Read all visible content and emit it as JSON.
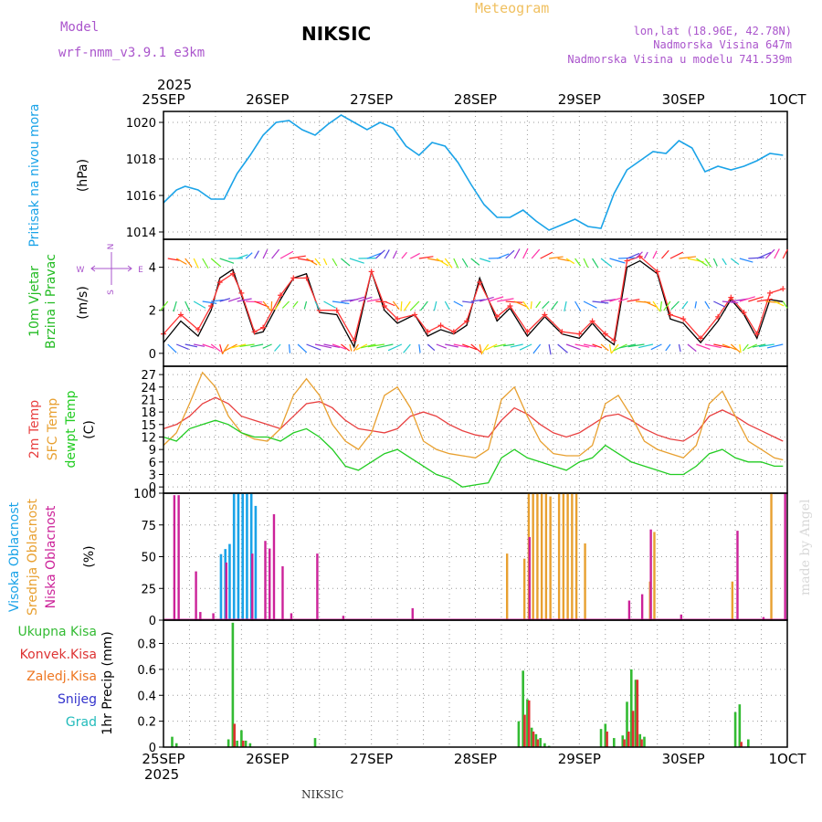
{
  "header": {
    "model_label": "Model",
    "model_name": "wrf-nmm_v3.9.1 e3km",
    "station": "NIKSIC",
    "meteogram": "Meteogram",
    "coords": "lon,lat (18.96E, 42.78N)",
    "elevation": "Nadmorska Visina 647m",
    "model_elevation": "Nadmorska Visina u modelu 741.539m",
    "year_top": "2025",
    "year_bottom": "2025",
    "footer_station": "NIKSIC",
    "credit": "made by Angel"
  },
  "colors": {
    "pressure": "#1aa3e8",
    "wind_label": "#22bb22",
    "temp2m": "#e84040",
    "sfc": "#e8a030",
    "dewpt": "#22cc22",
    "cloud_high": "#1aa3e8",
    "cloud_mid": "#e8a030",
    "cloud_low": "#cc2299",
    "precip_total": "#33bb33",
    "precip_conv": "#dd3333",
    "precip_frz": "#ee7722",
    "precip_snow": "#3333cc",
    "precip_grad": "#22bbbb",
    "purple": "#aa55cc"
  },
  "chart_data": {
    "time_axis": {
      "ticks": [
        "25SEP",
        "26SEP",
        "27SEP",
        "28SEP",
        "29SEP",
        "30SEP",
        "1OCT"
      ],
      "hours": 144
    },
    "panels": [
      {
        "id": "pressure",
        "type": "line",
        "labels": [
          "Pritisak na nivou mora"
        ],
        "unit": "(hPa)",
        "ylim": [
          1013.6,
          1020.6
        ],
        "yticks": [
          1014,
          1016,
          1018,
          1020
        ],
        "series": [
          {
            "name": "Pritisak na nivou mora",
            "color": "#1aa3e8",
            "x": [
              0,
              3,
              5,
              8,
              11,
              14,
              17,
              20,
              23,
              26,
              29,
              32,
              35,
              38,
              41,
              44,
              47,
              50,
              53,
              56,
              59,
              62,
              65,
              68,
              71,
              74,
              77,
              80,
              83,
              86,
              89,
              92,
              95,
              98,
              101,
              104,
              107,
              110,
              113,
              116,
              119,
              122,
              125,
              128,
              131,
              134,
              137,
              140,
              143
            ],
            "values": [
              1015.6,
              1016.3,
              1016.5,
              1016.3,
              1015.8,
              1015.8,
              1017.2,
              1018.2,
              1019.3,
              1020.0,
              1020.1,
              1019.6,
              1019.3,
              1019.9,
              1020.4,
              1020.0,
              1019.6,
              1020.0,
              1019.7,
              1018.7,
              1018.2,
              1018.9,
              1018.7,
              1017.8,
              1016.6,
              1015.5,
              1014.8,
              1014.8,
              1015.2,
              1014.6,
              1014.1,
              1014.4,
              1014.7,
              1014.3,
              1014.2,
              1016.1,
              1017.4,
              1017.9,
              1018.4,
              1018.3,
              1019.0,
              1018.6,
              1017.3,
              1017.6,
              1017.4,
              1017.6,
              1017.9,
              1018.3,
              1018.2
            ]
          }
        ]
      },
      {
        "id": "wind",
        "type": "line",
        "labels": [
          "10m Vjetar",
          "Brzina i Pravac"
        ],
        "unit": "(m/s)",
        "compass": [
          "N",
          "W",
          "E",
          "S"
        ],
        "ylim": [
          -0.6,
          5.3
        ],
        "yticks": [
          0,
          2,
          4
        ],
        "series": [
          {
            "name": "Brzina",
            "color": "#000000",
            "x": [
              0,
              4,
              8,
              11,
              13,
              16,
              18,
              21,
              23,
              27,
              30,
              33,
              36,
              40,
              44,
              48,
              51,
              54,
              58,
              61,
              64,
              67,
              70,
              73,
              77,
              80,
              84,
              88,
              92,
              96,
              99,
              102,
              104,
              107,
              110,
              114,
              117,
              120,
              124,
              128,
              131,
              134,
              137,
              140,
              143
            ],
            "values": [
              0.5,
              1.5,
              0.8,
              2.0,
              3.5,
              3.9,
              2.7,
              0.9,
              1.0,
              2.5,
              3.5,
              3.7,
              1.9,
              1.8,
              0.3,
              3.8,
              2.0,
              1.4,
              1.8,
              0.8,
              1.1,
              0.9,
              1.3,
              3.5,
              1.5,
              2.1,
              0.8,
              1.7,
              0.9,
              0.7,
              1.4,
              0.7,
              0.4,
              4.0,
              4.3,
              3.7,
              1.6,
              1.4,
              0.5,
              1.5,
              2.5,
              1.8,
              0.7,
              2.5,
              2.4
            ]
          },
          {
            "name": "Udari",
            "color": "#ff3333",
            "x": [
              0,
              4,
              8,
              11,
              13,
              16,
              18,
              21,
              23,
              27,
              30,
              33,
              36,
              40,
              44,
              48,
              51,
              54,
              58,
              61,
              64,
              67,
              70,
              73,
              77,
              80,
              84,
              88,
              92,
              96,
              99,
              102,
              104,
              107,
              110,
              114,
              117,
              120,
              124,
              128,
              131,
              134,
              137,
              140,
              143
            ],
            "values": [
              0.9,
              1.8,
              1.1,
              2.2,
              3.3,
              3.7,
              2.8,
              1.0,
              1.2,
              2.7,
              3.5,
              3.5,
              2.0,
              2.0,
              0.6,
              3.8,
              2.2,
              1.6,
              1.8,
              1.0,
              1.3,
              1.0,
              1.5,
              3.3,
              1.7,
              2.2,
              1.0,
              1.8,
              1.0,
              0.9,
              1.5,
              0.9,
              0.6,
              4.3,
              4.5,
              3.8,
              1.8,
              1.6,
              0.7,
              1.7,
              2.6,
              1.9,
              0.9,
              2.8,
              3.0
            ]
          }
        ]
      },
      {
        "id": "temperature",
        "type": "line",
        "labels": [
          "2m Temp",
          "SFC Temp",
          "dewpt Temp"
        ],
        "unit": "(C)",
        "ylim": [
          -1.5,
          29
        ],
        "yticks": [
          0,
          3,
          6,
          9,
          12,
          15,
          18,
          21,
          24,
          27
        ],
        "series": [
          {
            "name": "2m Temp",
            "color": "#e84040",
            "x": [
              0,
              3,
              6,
              9,
              12,
              15,
              18,
              21,
              24,
              27,
              30,
              33,
              36,
              39,
              42,
              45,
              48,
              51,
              54,
              57,
              60,
              63,
              66,
              69,
              72,
              75,
              78,
              81,
              84,
              87,
              90,
              93,
              96,
              99,
              102,
              105,
              108,
              111,
              114,
              117,
              120,
              123,
              126,
              129,
              132,
              135,
              138,
              141,
              143
            ],
            "values": [
              14,
              15,
              17,
              20,
              21.5,
              20,
              17,
              16,
              15,
              14,
              17,
              20,
              20.5,
              19,
              16,
              14,
              13.5,
              13,
              14,
              17,
              18,
              17,
              15,
              13.5,
              12.5,
              12,
              16,
              19,
              17.5,
              15,
              13,
              12,
              13,
              15,
              17,
              17.5,
              16,
              14,
              12.5,
              11.5,
              11,
              13,
              17,
              18.5,
              17,
              15,
              13.5,
              12,
              11
            ]
          },
          {
            "name": "SFC Temp",
            "color": "#e8a030",
            "x": [
              0,
              3,
              6,
              9,
              12,
              15,
              18,
              21,
              24,
              27,
              30,
              33,
              36,
              39,
              42,
              45,
              48,
              51,
              54,
              57,
              60,
              63,
              66,
              69,
              72,
              75,
              78,
              81,
              84,
              87,
              90,
              93,
              96,
              99,
              102,
              105,
              108,
              111,
              114,
              117,
              120,
              123,
              126,
              129,
              132,
              135,
              138,
              141,
              143
            ],
            "values": [
              10,
              13,
              20,
              27.5,
              24,
              17,
              13,
              11.5,
              11,
              14,
              22,
              26,
              22,
              15,
              11,
              9,
              13,
              22,
              24,
              19,
              11,
              9,
              8,
              7.5,
              7,
              9,
              21,
              24,
              17,
              11,
              8,
              7.5,
              7.5,
              10,
              20,
              22,
              17,
              11,
              9,
              8,
              7,
              10,
              20,
              23,
              17,
              11,
              9,
              7,
              6.5
            ]
          },
          {
            "name": "dewpt Temp",
            "color": "#22cc22",
            "x": [
              0,
              3,
              6,
              9,
              12,
              15,
              18,
              21,
              24,
              27,
              30,
              33,
              36,
              39,
              42,
              45,
              48,
              51,
              54,
              57,
              60,
              63,
              66,
              69,
              72,
              75,
              78,
              81,
              84,
              87,
              90,
              93,
              96,
              99,
              102,
              105,
              108,
              111,
              114,
              117,
              120,
              123,
              126,
              129,
              132,
              135,
              138,
              141,
              143
            ],
            "values": [
              12,
              11,
              14,
              15,
              16,
              15,
              13,
              12,
              12,
              11,
              13,
              14,
              12,
              9,
              5,
              4,
              6,
              8,
              9,
              7,
              5,
              3,
              2,
              0,
              0.5,
              1,
              7,
              9,
              7,
              6,
              5,
              4,
              6,
              7,
              10,
              8,
              6,
              5,
              4,
              3,
              3,
              5,
              8,
              9,
              7,
              6,
              6,
              5,
              5
            ]
          }
        ]
      },
      {
        "id": "clouds",
        "type": "bar",
        "labels": [
          "Visoka Oblacnost",
          "Srednja Oblacnost",
          "Niska Oblacnost"
        ],
        "unit": "(%)",
        "ylim": [
          0,
          100
        ],
        "yticks": [
          0,
          25,
          50,
          75,
          100
        ],
        "series": [
          {
            "name": "Visoka Oblacnost",
            "color": "#1aa3e8",
            "x": [
              13,
              14,
              15,
              16,
              17,
              18,
              19,
              20,
              21
            ],
            "values": [
              52,
              56,
              60,
              100,
              100,
              100,
              100,
              100,
              90
            ]
          },
          {
            "name": "Srednja Oblacnost",
            "color": "#e8a030",
            "x": [
              79,
              83,
              84,
              85,
              86,
              87,
              88,
              89,
              91,
              92,
              93,
              94,
              95,
              97,
              112,
              113,
              131,
              140
            ],
            "values": [
              52,
              48,
              100,
              100,
              100,
              100,
              100,
              97,
              100,
              100,
              100,
              100,
              100,
              60,
              30,
              69,
              30,
              100
            ]
          },
          {
            "name": "Niska Oblacnost",
            "color": "#cc2299",
            "x": [
              2,
              3,
              7,
              8,
              11,
              14,
              20,
              23,
              24,
              25,
              27,
              29,
              35,
              41,
              57,
              84,
              107,
              110,
              112,
              119,
              132,
              138,
              143
            ],
            "values": [
              98,
              98,
              38,
              6,
              5,
              45,
              52,
              62,
              56,
              83,
              42,
              5,
              52,
              3,
              9,
              65,
              15,
              20,
              71,
              4,
              70,
              2,
              100
            ]
          }
        ]
      },
      {
        "id": "precip",
        "type": "bar",
        "labels": [
          "Ukupna Kisa",
          "Konvek.Kisa",
          "Zaledj.Kisa",
          "Snijeg",
          "Grad"
        ],
        "unit": "1hr Precip (mm)",
        "ylim": [
          0,
          0.98
        ],
        "yticks": [
          0,
          0.2,
          0.4,
          0.6,
          0.8
        ],
        "series": [
          {
            "name": "Ukupna Kisa",
            "color": "#33bb33",
            "x": [
              2,
              3,
              15,
              16,
              17,
              18,
              19,
              20,
              35,
              82,
              83,
              84,
              85,
              86,
              87,
              88,
              89,
              101,
              102,
              104,
              106,
              107,
              108,
              109,
              110,
              111,
              132,
              133,
              135
            ],
            "values": [
              0.08,
              0.03,
              0.06,
              0.96,
              0.05,
              0.13,
              0.05,
              0.03,
              0.07,
              0.2,
              0.59,
              0.37,
              0.15,
              0.1,
              0.07,
              0.03,
              0.01,
              0.14,
              0.18,
              0.07,
              0.09,
              0.35,
              0.6,
              0.52,
              0.1,
              0.08,
              0.27,
              0.33,
              0.06
            ]
          },
          {
            "name": "Konvek.Kisa",
            "color": "#dd3333",
            "x": [
              16,
              18,
              83,
              84,
              85,
              86,
              102,
              106,
              107,
              108,
              109,
              110,
              133
            ],
            "values": [
              0.18,
              0.05,
              0.25,
              0.36,
              0.12,
              0.06,
              0.12,
              0.06,
              0.12,
              0.28,
              0.52,
              0.06,
              0.04
            ]
          }
        ]
      }
    ]
  }
}
